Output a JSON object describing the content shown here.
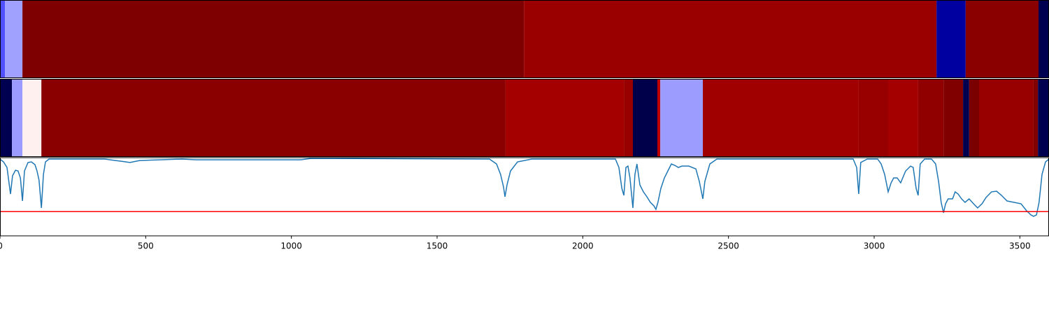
{
  "chart_data": {
    "type": "line",
    "xlim": [
      0,
      3600
    ],
    "xticks": [
      0,
      500,
      1000,
      1500,
      2000,
      2500,
      3000,
      3500
    ],
    "ylim": [
      0,
      1
    ],
    "threshold": 0.31,
    "threshold_color": "#ff0000",
    "color": "#1f77b4",
    "bands": [
      [
        {
          "start": 0,
          "end": 17,
          "color": "#5050ff"
        },
        {
          "start": 17,
          "end": 77,
          "color": "#a0a0ff"
        },
        {
          "start": 77,
          "end": 1798,
          "color": "#7f0000"
        },
        {
          "start": 1798,
          "end": 3214,
          "color": "#9b0000"
        },
        {
          "start": 3214,
          "end": 3314,
          "color": "#0000a0"
        },
        {
          "start": 3314,
          "end": 3564,
          "color": "#8a0000"
        },
        {
          "start": 3564,
          "end": 3600,
          "color": "#000050"
        }
      ],
      [
        {
          "start": 0,
          "end": 41,
          "color": "#000050"
        },
        {
          "start": 41,
          "end": 77,
          "color": "#9a9aff"
        },
        {
          "start": 77,
          "end": 142,
          "color": "#fff0f0"
        },
        {
          "start": 142,
          "end": 1735,
          "color": "#8a0000"
        },
        {
          "start": 1735,
          "end": 2141,
          "color": "#a40000"
        },
        {
          "start": 2141,
          "end": 2172,
          "color": "#980000"
        },
        {
          "start": 2172,
          "end": 2256,
          "color": "#00004a"
        },
        {
          "start": 2256,
          "end": 2266,
          "color": "#c00000"
        },
        {
          "start": 2266,
          "end": 2412,
          "color": "#9c9cff"
        },
        {
          "start": 2412,
          "end": 2947,
          "color": "#a00000"
        },
        {
          "start": 2947,
          "end": 3048,
          "color": "#980000"
        },
        {
          "start": 3048,
          "end": 3151,
          "color": "#a40000"
        },
        {
          "start": 3151,
          "end": 3238,
          "color": "#900000"
        },
        {
          "start": 3238,
          "end": 3305,
          "color": "#800000"
        },
        {
          "start": 3305,
          "end": 3326,
          "color": "#000050"
        },
        {
          "start": 3326,
          "end": 3360,
          "color": "#7a0000"
        },
        {
          "start": 3360,
          "end": 3547,
          "color": "#980000"
        },
        {
          "start": 3547,
          "end": 3562,
          "color": "#800000"
        },
        {
          "start": 3562,
          "end": 3600,
          "color": "#000050"
        }
      ]
    ],
    "x": [
      0,
      12,
      24,
      36,
      43,
      53,
      62,
      70,
      77,
      84,
      96,
      108,
      120,
      127,
      134,
      142,
      149,
      156,
      168,
      360,
      432,
      446,
      480,
      624,
      672,
      1032,
      1068,
      1680,
      1704,
      1718,
      1728,
      1733,
      1740,
      1752,
      1776,
      1824,
      2112,
      2124,
      2134,
      2141,
      2148,
      2155,
      2162,
      2172,
      2179,
      2186,
      2196,
      2208,
      2220,
      2232,
      2244,
      2251,
      2258,
      2268,
      2280,
      2292,
      2304,
      2316,
      2328,
      2340,
      2364,
      2388,
      2400,
      2412,
      2419,
      2436,
      2460,
      2928,
      2940,
      2947,
      2954,
      2976,
      3012,
      3024,
      3036,
      3048,
      3058,
      3067,
      3079,
      3091,
      3108,
      3125,
      3134,
      3144,
      3151,
      3158,
      3173,
      3197,
      3211,
      3221,
      3230,
      3238,
      3245,
      3254,
      3269,
      3278,
      3288,
      3300,
      3312,
      3326,
      3341,
      3355,
      3370,
      3384,
      3403,
      3420,
      3437,
      3456,
      3480,
      3504,
      3523,
      3538,
      3547,
      3557,
      3566,
      3576,
      3588,
      3600
    ],
    "values": [
      0.982,
      0.946,
      0.875,
      0.536,
      0.768,
      0.839,
      0.83,
      0.741,
      0.446,
      0.83,
      0.938,
      0.946,
      0.911,
      0.83,
      0.714,
      0.357,
      0.786,
      0.946,
      0.982,
      0.982,
      0.946,
      0.938,
      0.964,
      0.982,
      0.973,
      0.973,
      0.991,
      0.982,
      0.92,
      0.786,
      0.625,
      0.5,
      0.652,
      0.83,
      0.946,
      0.982,
      0.982,
      0.875,
      0.607,
      0.518,
      0.875,
      0.893,
      0.741,
      0.357,
      0.786,
      0.92,
      0.652,
      0.563,
      0.5,
      0.429,
      0.384,
      0.339,
      0.429,
      0.607,
      0.741,
      0.83,
      0.92,
      0.902,
      0.875,
      0.893,
      0.893,
      0.857,
      0.696,
      0.473,
      0.696,
      0.92,
      0.982,
      0.982,
      0.875,
      0.536,
      0.938,
      0.982,
      0.982,
      0.92,
      0.786,
      0.563,
      0.679,
      0.741,
      0.741,
      0.679,
      0.83,
      0.893,
      0.875,
      0.607,
      0.518,
      0.92,
      0.982,
      0.982,
      0.92,
      0.696,
      0.429,
      0.295,
      0.411,
      0.473,
      0.473,
      0.563,
      0.536,
      0.473,
      0.429,
      0.473,
      0.411,
      0.357,
      0.411,
      0.491,
      0.563,
      0.571,
      0.518,
      0.446,
      0.429,
      0.411,
      0.321,
      0.268,
      0.25,
      0.268,
      0.429,
      0.786,
      0.946,
      0.982
    ]
  }
}
